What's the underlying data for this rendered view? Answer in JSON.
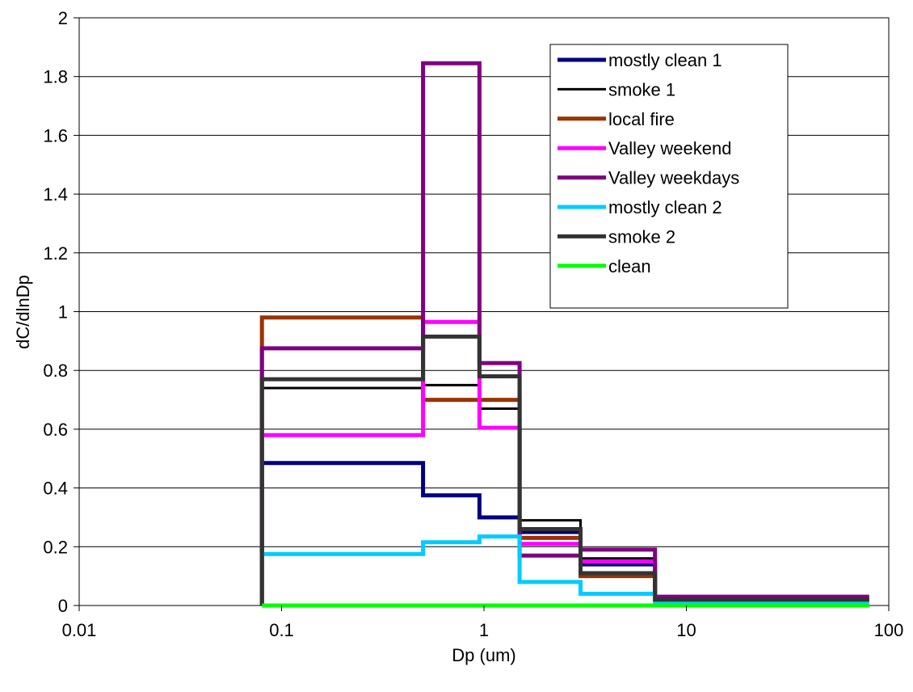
{
  "chart_data": {
    "type": "line",
    "step": true,
    "title": "",
    "xlabel": "Dp (um)",
    "ylabel": "dC/dlnDp",
    "xscale": "log",
    "xlim": [
      0.01,
      100
    ],
    "ylim": [
      0,
      2
    ],
    "x_ticks": [
      "0.01",
      "0.1",
      "1",
      "10",
      "100"
    ],
    "y_ticks": [
      "0",
      "0.2",
      "0.4",
      "0.6",
      "0.8",
      "1",
      "1.2",
      "1.4",
      "1.6",
      "1.8",
      "2"
    ],
    "grid": "horizontal",
    "legend_position": "top-right",
    "bin_edges": [
      0.08,
      0.5,
      0.95,
      1.5,
      3,
      7,
      80
    ],
    "series": [
      {
        "name": "mostly clean 1",
        "color": "#000080",
        "values": [
          0.485,
          0.375,
          0.3,
          0.25,
          0.14,
          0.02
        ]
      },
      {
        "name": "smoke 1",
        "color": "#000000",
        "values": [
          0.74,
          0.75,
          0.67,
          0.29,
          0.16,
          0.03
        ]
      },
      {
        "name": "local fire",
        "color": "#993300",
        "values": [
          0.98,
          0.7,
          0.7,
          0.23,
          0.1,
          0.02
        ]
      },
      {
        "name": "Valley weekend",
        "color": "#FF00FF",
        "values": [
          0.58,
          0.965,
          0.605,
          0.21,
          0.15,
          0.02
        ]
      },
      {
        "name": "Valley weekdays",
        "color": "#800080",
        "values": [
          0.875,
          1.845,
          0.825,
          0.17,
          0.19,
          0.03
        ]
      },
      {
        "name": "mostly clean 2",
        "color": "#00CCFF",
        "values": [
          0.175,
          0.215,
          0.235,
          0.08,
          0.04,
          0.01
        ]
      },
      {
        "name": "smoke 2",
        "color": "#333333",
        "values": [
          0.77,
          0.915,
          0.78,
          0.26,
          0.11,
          0.02
        ]
      },
      {
        "name": "clean",
        "color": "#00FF00",
        "values": [
          0.0,
          0.0,
          0.0,
          0.0,
          0.0,
          0.0
        ]
      }
    ]
  }
}
